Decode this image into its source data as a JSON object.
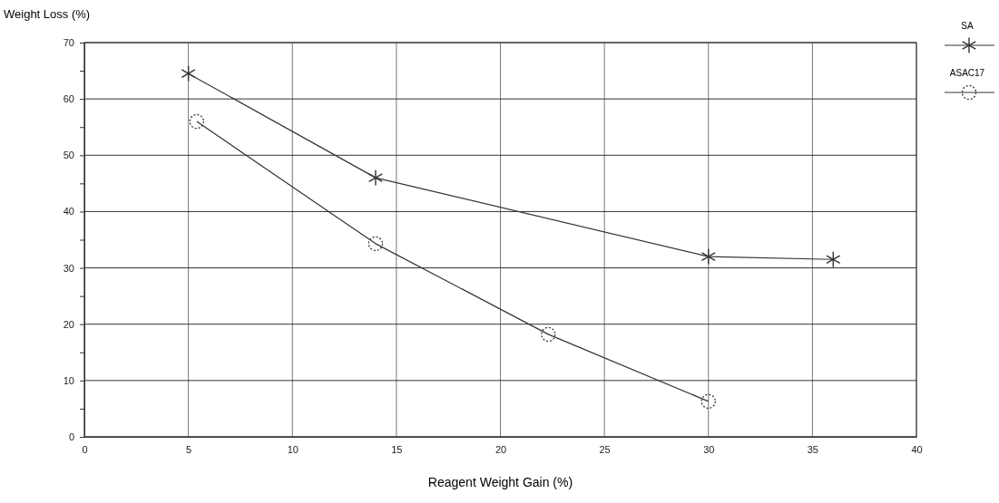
{
  "chart_data": {
    "type": "line",
    "xlabel": "Reagent Weight Gain (%)",
    "ylabel": "Weight Loss (%)",
    "xlim": [
      0,
      40
    ],
    "xticks": [
      0,
      5,
      10,
      15,
      20,
      25,
      30,
      35,
      40
    ],
    "ylim": [
      0,
      70
    ],
    "yticks": [
      0,
      {
        "value": 5,
        "label": null
      },
      10,
      {
        "value": 15,
        "label": null
      },
      20,
      {
        "value": 25,
        "label": null
      },
      30,
      {
        "value": 35,
        "label": null
      },
      40,
      {
        "value": 45,
        "label": null
      },
      50,
      {
        "value": 55,
        "label": null
      },
      60,
      {
        "value": 65,
        "label": null
      },
      70
    ],
    "grid": true,
    "legend": "top right",
    "line_style": "solid",
    "series": [
      {
        "name": "SA",
        "color": "#333333",
        "marker": "cross",
        "x": [
          5,
          14,
          30,
          36
        ],
        "values": [
          64.5,
          46,
          32,
          31.5
        ]
      },
      {
        "name": "ASAC17",
        "color": "#333333",
        "marker": "circle",
        "x": [
          5.4,
          14,
          22.3,
          30
        ],
        "values": [
          56,
          34.3,
          18.2,
          6.3
        ]
      }
    ]
  }
}
